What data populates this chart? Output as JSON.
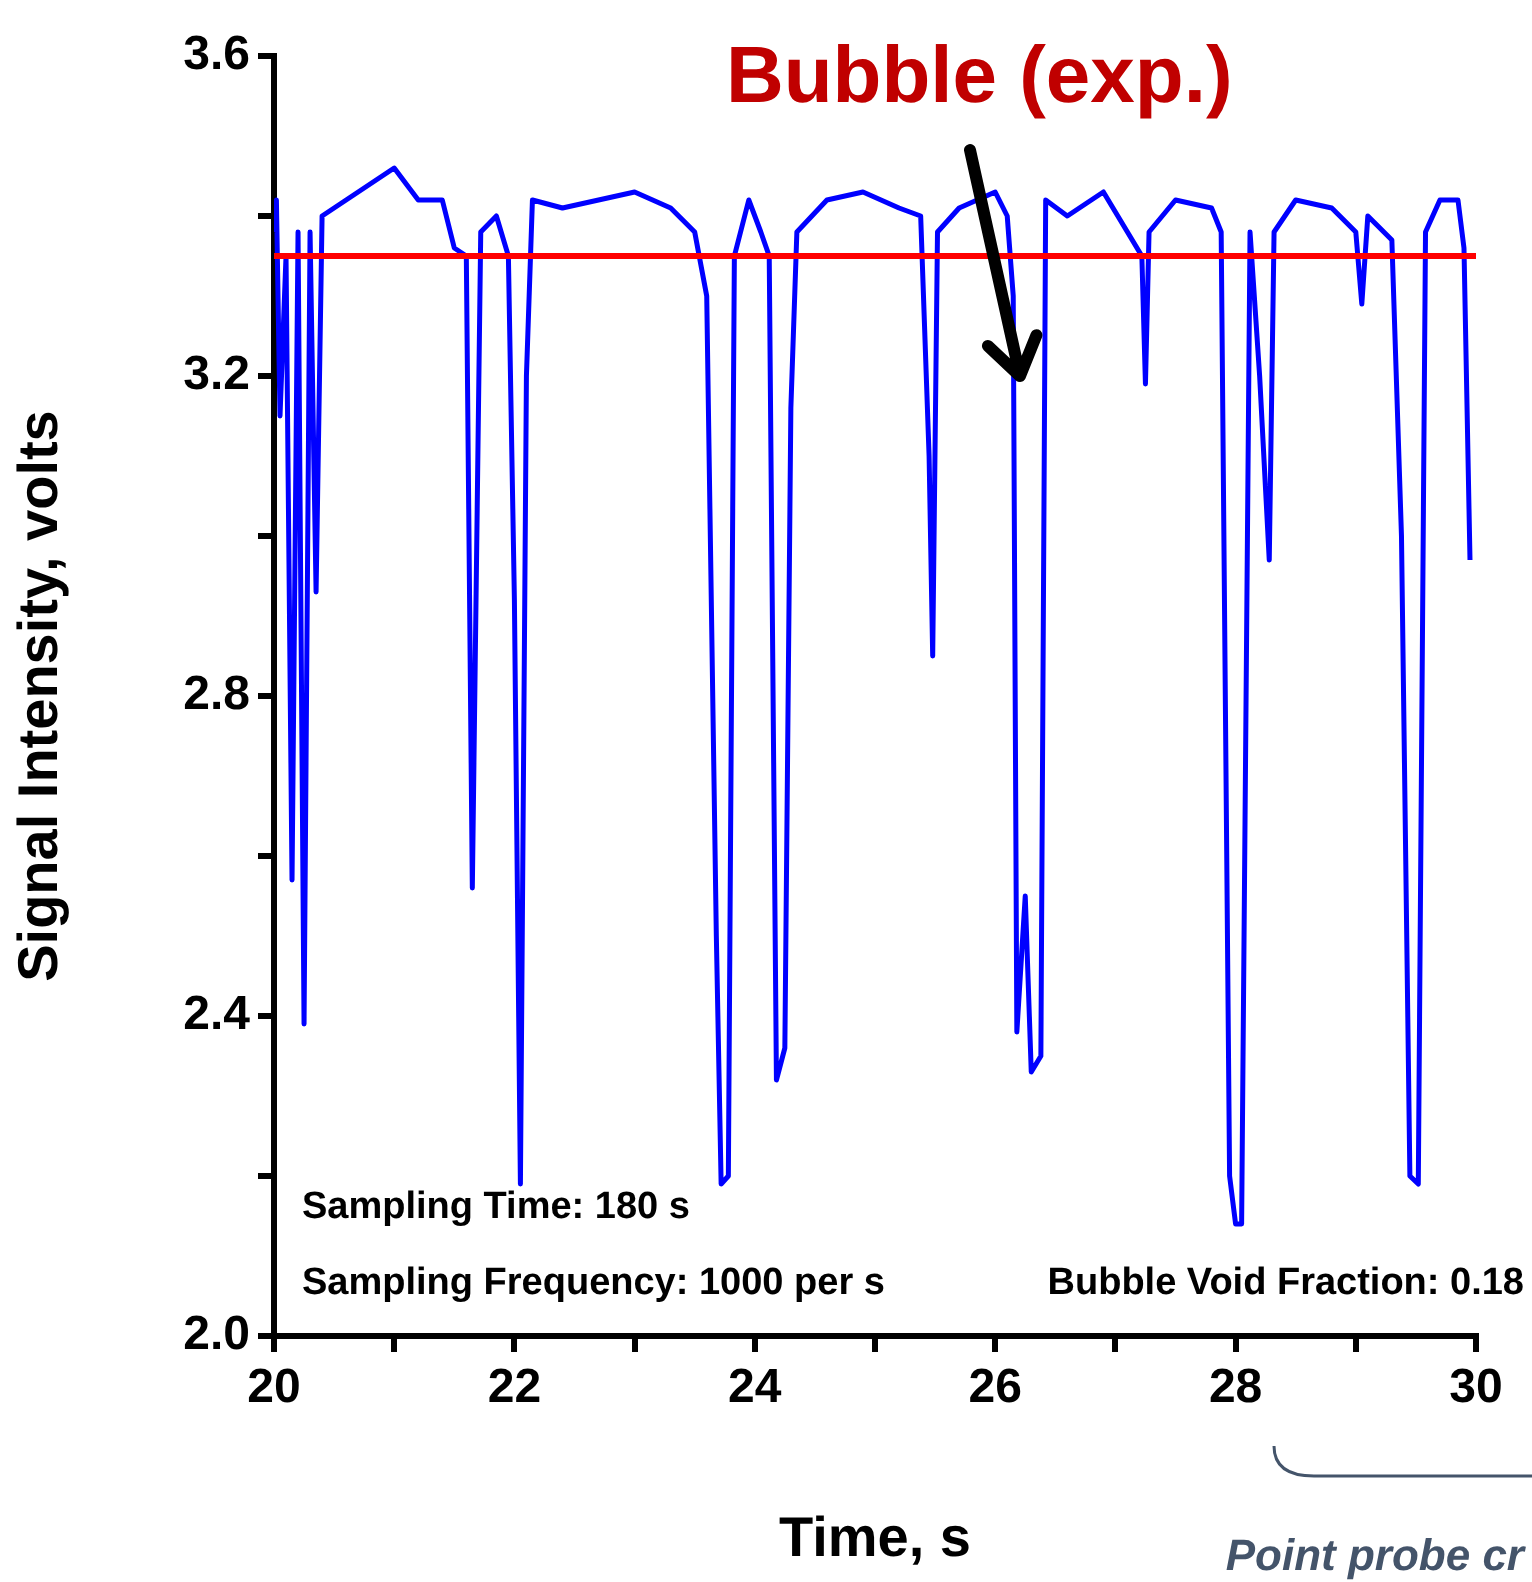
{
  "chart_data": {
    "type": "line",
    "xlabel": "Time, s",
    "ylabel": "Signal Intensity, volts",
    "xlim": [
      20,
      30
    ],
    "ylim": [
      2.0,
      3.6
    ],
    "xticks": [
      20,
      {
        "value": 21,
        "label": null
      },
      22,
      {
        "value": 23,
        "label": null
      },
      24,
      {
        "value": 25,
        "label": null
      },
      26,
      {
        "value": 27,
        "label": null
      },
      28,
      {
        "value": 29,
        "label": null
      },
      30
    ],
    "yticks": [
      {
        "value": 2,
        "label": "2.0"
      },
      {
        "value": 2.2,
        "label": null
      },
      2.4,
      {
        "value": 2.6,
        "label": null
      },
      2.8,
      {
        "value": 3,
        "label": null
      },
      3.2,
      {
        "value": 3.4,
        "label": null
      },
      3.6
    ],
    "grid": false,
    "legend": false,
    "marker": "none",
    "line_style": "solid",
    "ref_lines": [
      {
        "axis": "y",
        "value": 3.35,
        "color": "#ff0000"
      }
    ],
    "annotations": [
      {
        "text": "Bubble (exp.)",
        "x": 26.2,
        "y": 3.2
      },
      "Sampling Time: 180 s",
      "Sampling Frequency: 1000 per s",
      "Bubble Void Fraction: 0.18",
      "Point probe cr"
    ],
    "series": [
      {
        "color": "#0000ff",
        "x": [
          20.0,
          20.02,
          20.05,
          20.1,
          20.15,
          20.2,
          20.25,
          20.3,
          20.35,
          20.4,
          20.6,
          20.8,
          21.0,
          21.2,
          21.4,
          21.5,
          21.6,
          21.65,
          21.72,
          21.85,
          21.95,
          22.0,
          22.05,
          22.1,
          22.15,
          22.4,
          22.7,
          23.0,
          23.3,
          23.5,
          23.6,
          23.68,
          23.72,
          23.78,
          23.83,
          23.95,
          24.05,
          24.12,
          24.18,
          24.25,
          24.3,
          24.35,
          24.6,
          24.9,
          25.2,
          25.38,
          25.45,
          25.48,
          25.52,
          25.7,
          26.0,
          26.1,
          26.15,
          26.18,
          26.25,
          26.3,
          26.38,
          26.42,
          26.6,
          26.9,
          27.1,
          27.22,
          27.25,
          27.28,
          27.5,
          27.8,
          27.88,
          27.95,
          28.0,
          28.05,
          28.12,
          28.2,
          28.28,
          28.32,
          28.5,
          28.8,
          29.0,
          29.05,
          29.1,
          29.3,
          29.38,
          29.45,
          29.52,
          29.58,
          29.7,
          29.85,
          29.9,
          29.95
        ],
        "values": [
          3.38,
          3.42,
          3.15,
          3.35,
          2.57,
          3.38,
          2.39,
          3.38,
          2.93,
          3.4,
          3.42,
          3.44,
          3.46,
          3.42,
          3.42,
          3.36,
          3.35,
          2.56,
          3.38,
          3.4,
          3.35,
          2.92,
          2.19,
          3.2,
          3.42,
          3.41,
          3.42,
          3.43,
          3.41,
          3.38,
          3.3,
          2.5,
          2.19,
          2.2,
          3.35,
          3.42,
          3.38,
          3.35,
          2.32,
          2.36,
          3.16,
          3.38,
          3.42,
          3.43,
          3.41,
          3.4,
          3.1,
          2.85,
          3.38,
          3.41,
          3.43,
          3.4,
          3.3,
          2.38,
          2.55,
          2.33,
          2.35,
          3.42,
          3.4,
          3.43,
          3.38,
          3.35,
          3.19,
          3.38,
          3.42,
          3.41,
          3.38,
          2.2,
          2.14,
          2.14,
          3.38,
          3.2,
          2.97,
          3.38,
          3.42,
          3.41,
          3.38,
          3.29,
          3.4,
          3.37,
          3.0,
          2.2,
          2.19,
          3.38,
          3.42,
          3.42,
          3.36,
          2.97
        ]
      }
    ]
  }
}
